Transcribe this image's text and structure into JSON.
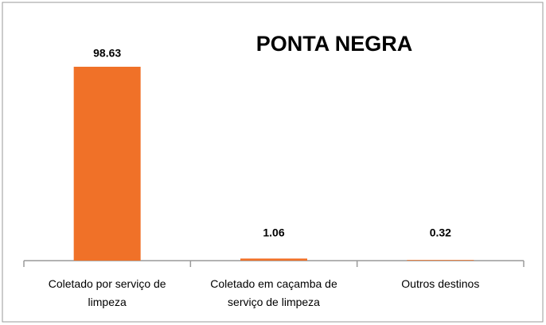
{
  "chart_data": {
    "type": "bar",
    "title": "PONTA NEGRA",
    "categories": [
      "Coletado por serviço de limpeza",
      "Coletado em caçamba de serviço de limpeza",
      "Outros destinos"
    ],
    "values": [
      98.63,
      1.06,
      0.32
    ],
    "color": "#f07128"
  }
}
